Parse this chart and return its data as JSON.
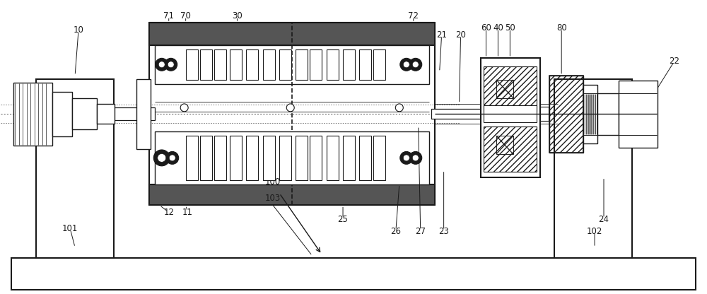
{
  "bg_color": "#ffffff",
  "lc": "#1a1a1a",
  "figsize": [
    10.0,
    4.16
  ],
  "dpi": 100,
  "xlim": [
    0,
    10
  ],
  "ylim": [
    0,
    4.16
  ]
}
